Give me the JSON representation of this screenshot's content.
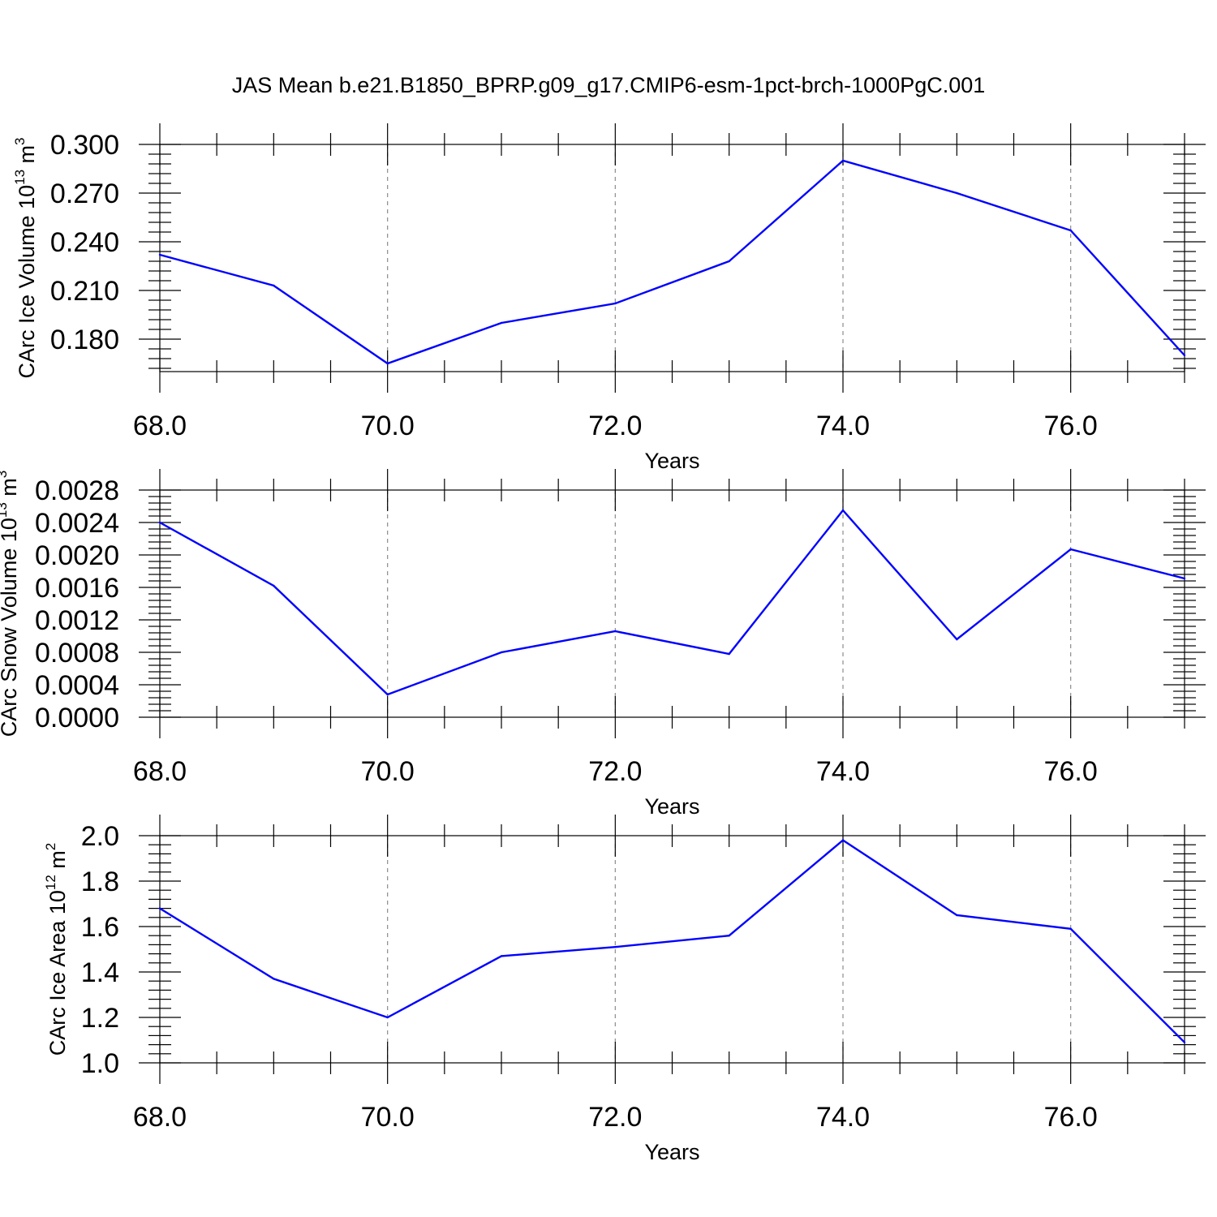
{
  "title": "JAS Mean b.e21.B1850_BPRP.g09_g17.CMIP6-esm-1pct-brch-1000PgC.001",
  "colors": {
    "line": "#0000ff",
    "axis": "#000000",
    "grid": "#8c8c8c"
  },
  "chart_data": [
    {
      "type": "line",
      "ylabel_main": "CArc Ice Volume 10",
      "ylabel_exp": "13",
      "ylabel_unit": " m",
      "ylabel_unit_exp": "3",
      "xlabel": "Years",
      "xlim": [
        68,
        77
      ],
      "ylim": [
        0.16,
        0.3
      ],
      "yticks": [
        0.18,
        0.21,
        0.24,
        0.27,
        0.3
      ],
      "ytick_labels": [
        "0.180",
        "0.210",
        "0.240",
        "0.270",
        "0.300"
      ],
      "xticks": [
        68,
        70,
        72,
        74,
        76
      ],
      "xtick_labels": [
        "68.0",
        "70.0",
        "72.0",
        "74.0",
        "76.0"
      ],
      "grid": "dashed vertical at major x ticks",
      "x": [
        68,
        69,
        70,
        71,
        72,
        73,
        74,
        75,
        76,
        77
      ],
      "values": [
        0.232,
        0.213,
        0.165,
        0.19,
        0.202,
        0.228,
        0.29,
        0.27,
        0.247,
        0.17
      ]
    },
    {
      "type": "line",
      "ylabel_main": "CArc Snow Volume 10",
      "ylabel_exp": "13",
      "ylabel_unit": " m",
      "ylabel_unit_exp": "3",
      "xlabel": "Years",
      "xlim": [
        68,
        77
      ],
      "ylim": [
        0.0,
        0.0028
      ],
      "yticks": [
        0.0,
        0.0004,
        0.0008,
        0.0012,
        0.0016,
        0.002,
        0.0024,
        0.0028
      ],
      "ytick_labels": [
        "0.0000",
        "0.0004",
        "0.0008",
        "0.0012",
        "0.0016",
        "0.0020",
        "0.0024",
        "0.0028"
      ],
      "xticks": [
        68,
        70,
        72,
        74,
        76
      ],
      "xtick_labels": [
        "68.0",
        "70.0",
        "72.0",
        "74.0",
        "76.0"
      ],
      "grid": "dashed vertical at major x ticks",
      "x": [
        68,
        69,
        70,
        71,
        72,
        73,
        74,
        75,
        76,
        77
      ],
      "values": [
        0.0024,
        0.00162,
        0.00028,
        0.0008,
        0.00106,
        0.00078,
        0.00255,
        0.00096,
        0.00207,
        0.00171
      ]
    },
    {
      "type": "line",
      "ylabel_main": "CArc Ice Area 10",
      "ylabel_exp": "12",
      "ylabel_unit": " m",
      "ylabel_unit_exp": "2",
      "xlabel": "Years",
      "xlim": [
        68,
        77
      ],
      "ylim": [
        1.0,
        2.0
      ],
      "yticks": [
        1.0,
        1.2,
        1.4,
        1.6,
        1.8,
        2.0
      ],
      "ytick_labels": [
        "1.0",
        "1.2",
        "1.4",
        "1.6",
        "1.8",
        "2.0"
      ],
      "xticks": [
        68,
        70,
        72,
        74,
        76
      ],
      "xtick_labels": [
        "68.0",
        "70.0",
        "72.0",
        "74.0",
        "76.0"
      ],
      "grid": "dashed vertical at major x ticks",
      "x": [
        68,
        69,
        70,
        71,
        72,
        73,
        74,
        75,
        76,
        77
      ],
      "values": [
        1.68,
        1.37,
        1.2,
        1.47,
        1.51,
        1.56,
        1.98,
        1.65,
        1.59,
        1.09
      ]
    }
  ]
}
